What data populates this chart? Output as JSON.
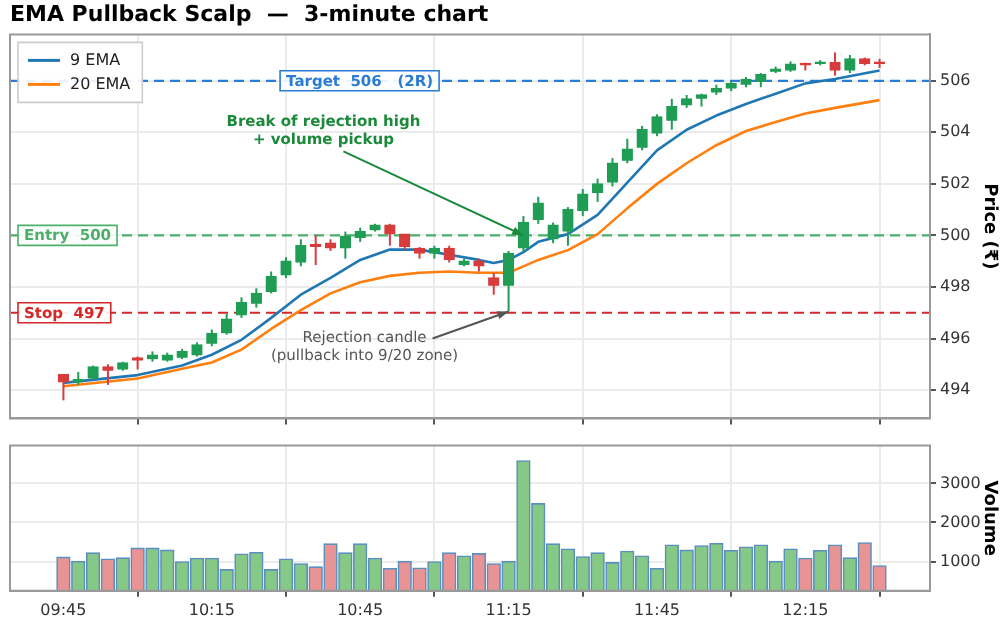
{
  "chart_data": [
    {
      "type": "candlestick",
      "title": "EMA Pullback Scalp  —  3-minute chart",
      "ylabel": "Price (₹)",
      "x": [
        9.75,
        9.8,
        9.85,
        9.9,
        9.95,
        10,
        10.05,
        10.1,
        10.15,
        10.2,
        10.25,
        10.3,
        10.35,
        10.4,
        10.45,
        10.5,
        10.55,
        10.6,
        10.65,
        10.7,
        10.75,
        10.8,
        10.85,
        10.9,
        10.95,
        11,
        11.05,
        11.1,
        11.15,
        11.2,
        11.25,
        11.3,
        11.35,
        11.4,
        11.45,
        11.5,
        11.55,
        11.6,
        11.65,
        11.7,
        11.75,
        11.8,
        11.85,
        11.9,
        11.95,
        12,
        12.05,
        12.1,
        12.15,
        12.2,
        12.25,
        12.3,
        12.35,
        12.4,
        12.45,
        12.5
      ],
      "ohlc": [
        [
          494.6,
          494.6,
          493.6,
          494.3
        ],
        [
          494.3,
          494.7,
          494.2,
          494.4
        ],
        [
          494.45,
          494.95,
          494.4,
          494.9
        ],
        [
          494.9,
          495.0,
          494.2,
          494.75
        ],
        [
          494.8,
          495.1,
          494.75,
          495.05
        ],
        [
          495.25,
          495.3,
          494.8,
          495.15
        ],
        [
          495.2,
          495.5,
          495.1,
          495.35
        ],
        [
          495.15,
          495.45,
          495.1,
          495.35
        ],
        [
          495.25,
          495.6,
          495.2,
          495.5
        ],
        [
          495.35,
          495.85,
          495.3,
          495.75
        ],
        [
          495.8,
          496.35,
          495.7,
          496.2
        ],
        [
          496.2,
          496.95,
          496.15,
          496.75
        ],
        [
          496.9,
          497.6,
          496.8,
          497.4
        ],
        [
          497.35,
          497.95,
          497.2,
          497.75
        ],
        [
          497.8,
          498.6,
          497.75,
          498.4
        ],
        [
          498.45,
          499.15,
          498.35,
          499.0
        ],
        [
          498.95,
          499.85,
          498.8,
          499.6
        ],
        [
          499.65,
          500.0,
          498.85,
          499.55
        ],
        [
          499.7,
          499.85,
          499.4,
          499.5
        ],
        [
          499.5,
          500.15,
          499.1,
          499.95
        ],
        [
          499.9,
          500.3,
          499.75,
          500.15
        ],
        [
          500.2,
          500.45,
          500.15,
          500.4
        ],
        [
          500.4,
          500.45,
          499.6,
          500.05
        ],
        [
          500.05,
          500.05,
          499.45,
          499.55
        ],
        [
          499.5,
          499.55,
          499.1,
          499.3
        ],
        [
          499.3,
          499.6,
          499.1,
          499.5
        ],
        [
          499.5,
          499.6,
          498.95,
          499.05
        ],
        [
          498.85,
          499.1,
          498.8,
          499.0
        ],
        [
          499.0,
          499.1,
          498.6,
          498.8
        ],
        [
          498.35,
          498.55,
          497.7,
          498.05
        ],
        [
          498.05,
          499.4,
          497.05,
          499.3
        ],
        [
          499.5,
          500.75,
          499.35,
          500.5
        ],
        [
          500.6,
          501.5,
          500.45,
          501.25
        ],
        [
          499.85,
          500.5,
          499.7,
          500.4
        ],
        [
          500.15,
          501.1,
          499.6,
          501.0
        ],
        [
          500.95,
          501.8,
          500.75,
          501.6
        ],
        [
          501.65,
          502.2,
          501.3,
          502.0
        ],
        [
          502.05,
          503.0,
          501.9,
          502.8
        ],
        [
          502.9,
          503.75,
          502.8,
          503.35
        ],
        [
          503.4,
          504.25,
          503.3,
          504.1
        ],
        [
          503.95,
          504.7,
          503.85,
          504.6
        ],
        [
          504.45,
          505.3,
          504.1,
          505.0
        ],
        [
          505.05,
          505.45,
          504.95,
          505.3
        ],
        [
          505.3,
          505.5,
          505.0,
          505.45
        ],
        [
          505.55,
          505.85,
          505.45,
          505.7
        ],
        [
          505.7,
          506.0,
          505.6,
          505.9
        ],
        [
          505.85,
          506.15,
          505.75,
          506.05
        ],
        [
          505.95,
          506.3,
          505.75,
          506.25
        ],
        [
          506.35,
          506.55,
          506.3,
          506.45
        ],
        [
          506.4,
          506.75,
          506.35,
          506.65
        ],
        [
          506.65,
          506.7,
          506.4,
          506.6
        ],
        [
          506.65,
          506.8,
          506.6,
          506.7
        ],
        [
          506.7,
          507.1,
          506.2,
          506.4
        ],
        [
          506.4,
          507.0,
          506.3,
          506.85
        ],
        [
          506.85,
          506.9,
          506.6,
          506.65
        ],
        [
          506.7,
          506.85,
          506.5,
          506.65
        ]
      ],
      "colors": [
        "#d83b3b",
        "#1f9d55",
        "#1f9d55",
        "#d83b3b",
        "#1f9d55",
        "#d83b3b",
        "#1f9d55",
        "#1f9d55",
        "#1f9d55",
        "#1f9d55",
        "#1f9d55",
        "#1f9d55",
        "#1f9d55",
        "#1f9d55",
        "#1f9d55",
        "#1f9d55",
        "#1f9d55",
        "#d83b3b",
        "#d83b3b",
        "#1f9d55",
        "#1f9d55",
        "#1f9d55",
        "#d83b3b",
        "#d83b3b",
        "#d83b3b",
        "#1f9d55",
        "#d83b3b",
        "#1f9d55",
        "#d83b3b",
        "#d83b3b",
        "#1f9d55",
        "#1f9d55",
        "#1f9d55",
        "#1f9d55",
        "#1f9d55",
        "#1f9d55",
        "#1f9d55",
        "#1f9d55",
        "#1f9d55",
        "#1f9d55",
        "#1f9d55",
        "#1f9d55",
        "#1f9d55",
        "#1f9d55",
        "#1f9d55",
        "#1f9d55",
        "#1f9d55",
        "#1f9d55",
        "#1f9d55",
        "#1f9d55",
        "#d83b3b",
        "#1f9d55",
        "#d83b3b",
        "#1f9d55",
        "#d83b3b",
        "#d83b3b"
      ],
      "series": [
        {
          "name": "9 EMA",
          "type": "line",
          "color": "#1f77b4",
          "x": [
            9.75,
            10,
            10.15,
            10.25,
            10.35,
            10.45,
            10.55,
            10.65,
            10.75,
            10.85,
            10.95,
            11.05,
            11.15,
            11.2,
            11.25,
            11.3,
            11.35,
            11.45,
            11.55,
            11.65,
            11.75,
            11.85,
            11.95,
            12.05,
            12.15,
            12.25,
            12.35,
            12.5
          ],
          "values": [
            494.28,
            494.58,
            494.95,
            495.37,
            495.95,
            496.8,
            497.7,
            498.35,
            499.05,
            499.45,
            499.45,
            499.25,
            499.05,
            498.93,
            499.05,
            499.35,
            499.75,
            500.05,
            500.8,
            502.05,
            503.3,
            504.1,
            504.65,
            505.1,
            505.5,
            505.9,
            506.07,
            506.4
          ]
        },
        {
          "name": "20 EMA",
          "type": "line",
          "color": "#ff7f0e",
          "x": [
            9.75,
            10,
            10.15,
            10.25,
            10.35,
            10.45,
            10.55,
            10.65,
            10.75,
            10.85,
            10.95,
            11.05,
            11.15,
            11.25,
            11.3,
            11.35,
            11.45,
            11.55,
            11.65,
            11.75,
            11.85,
            11.95,
            12.05,
            12.15,
            12.25,
            12.35,
            12.5
          ],
          "values": [
            494.15,
            494.45,
            494.83,
            495.07,
            495.57,
            496.37,
            497.1,
            497.75,
            498.18,
            498.43,
            498.55,
            498.6,
            498.55,
            498.55,
            498.8,
            499.05,
            499.43,
            500.05,
            501.05,
            502.0,
            502.8,
            503.5,
            504.05,
            504.4,
            504.73,
            504.95,
            505.25
          ]
        }
      ],
      "xlim": [
        9.57,
        12.67
      ],
      "xticks": [
        {
          "value": 9.75,
          "label": null
        },
        {
          "value": 10.25,
          "label": null
        },
        {
          "value": 10.75,
          "label": null
        },
        {
          "value": 11.25,
          "label": null
        },
        {
          "value": 11.75,
          "label": null
        },
        {
          "value": 12.25,
          "label": null
        }
      ],
      "ylim": [
        492.9,
        507.8
      ],
      "yticks": [
        494,
        496,
        498,
        500,
        502,
        504,
        506
      ],
      "ref_lines": [
        {
          "axis": "y",
          "value": 506,
          "label": "Target  506   (2R)",
          "color": "#2a7bd5",
          "line_style": "dashed"
        },
        {
          "axis": "y",
          "value": 500,
          "label": "Entry  500",
          "color": "#4caf6a",
          "line_style": "dashed"
        },
        {
          "axis": "y",
          "value": 497,
          "label": "Stop  497",
          "color": "#d62728",
          "line_style": "dashed"
        }
      ],
      "annotations": [
        {
          "text": "Break of rejection high\n+ volume pickup",
          "x": 11.3,
          "y": 500.0
        },
        {
          "text": "Rejection candle\n(pullback into 9/20 zone)",
          "x": 11.25,
          "y": 497.05
        }
      ],
      "legend": "top left",
      "grid": true,
      "tick_labels": "y"
    },
    {
      "type": "bar",
      "ylabel": "Volume",
      "x": [
        9.75,
        9.8,
        9.85,
        9.9,
        9.95,
        10,
        10.05,
        10.1,
        10.15,
        10.2,
        10.25,
        10.3,
        10.35,
        10.4,
        10.45,
        10.5,
        10.55,
        10.6,
        10.65,
        10.7,
        10.75,
        10.8,
        10.85,
        10.9,
        10.95,
        11,
        11.05,
        11.1,
        11.15,
        11.2,
        11.25,
        11.3,
        11.35,
        11.4,
        11.45,
        11.5,
        11.55,
        11.6,
        11.65,
        11.7,
        11.75,
        11.8,
        11.85,
        11.9,
        11.95,
        12,
        12.05,
        12.1,
        12.15,
        12.2,
        12.25,
        12.3,
        12.35,
        12.4,
        12.45,
        12.5
      ],
      "values": [
        1110,
        1000,
        1220,
        1060,
        1090,
        1340,
        1340,
        1290,
        990,
        1080,
        1080,
        790,
        1190,
        1230,
        790,
        1060,
        940,
        860,
        1450,
        1220,
        1450,
        1080,
        820,
        1000,
        830,
        990,
        1220,
        1140,
        1200,
        940,
        1000,
        3580,
        2480,
        1450,
        1320,
        1120,
        1220,
        970,
        1260,
        1140,
        820,
        1420,
        1290,
        1400,
        1460,
        1280,
        1370,
        1420,
        1000,
        1320,
        1080,
        1280,
        1420,
        1090,
        1480,
        890
      ],
      "colors": [
        "#e89494",
        "#86c986",
        "#86c986",
        "#e89494",
        "#86c986",
        "#e89494",
        "#86c986",
        "#86c986",
        "#86c986",
        "#86c986",
        "#86c986",
        "#86c986",
        "#86c986",
        "#86c986",
        "#86c986",
        "#86c986",
        "#86c986",
        "#e89494",
        "#e89494",
        "#86c986",
        "#86c986",
        "#86c986",
        "#e89494",
        "#e89494",
        "#e89494",
        "#86c986",
        "#e89494",
        "#86c986",
        "#e89494",
        "#e89494",
        "#86c986",
        "#86c986",
        "#86c986",
        "#86c986",
        "#86c986",
        "#86c986",
        "#86c986",
        "#86c986",
        "#86c986",
        "#86c986",
        "#86c986",
        "#86c986",
        "#86c986",
        "#86c986",
        "#86c986",
        "#86c986",
        "#86c986",
        "#86c986",
        "#86c986",
        "#86c986",
        "#e89494",
        "#86c986",
        "#e89494",
        "#86c986",
        "#e89494",
        "#e89494"
      ],
      "xlim": [
        9.57,
        12.67
      ],
      "xticks": [
        {
          "value": 9.75,
          "label": "09:45"
        },
        {
          "value": 10.25,
          "label": "10:15"
        },
        {
          "value": 10.75,
          "label": "10:45"
        },
        {
          "value": 11.25,
          "label": "11:15"
        },
        {
          "value": 11.75,
          "label": "11:45"
        },
        {
          "value": 12.25,
          "label": "12:15"
        }
      ],
      "ylim": [
        250,
        3970
      ],
      "yticks": [
        1000,
        2000,
        3000
      ],
      "grid": true
    }
  ]
}
